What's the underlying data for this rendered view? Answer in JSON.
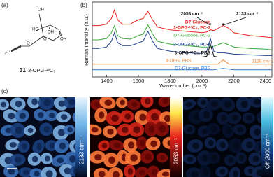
{
  "panel_labels": [
    "(a)",
    "(b)",
    "(c)"
  ],
  "structure": {
    "atom_labels": [
      "OH",
      "O",
      "OH",
      "OH",
      "HO",
      "O"
    ],
    "compound_number": "31",
    "compound_name": "3-OPG-¹³C₃"
  },
  "chart_data": {
    "type": "line",
    "x_label": "Wavenumber (cm⁻¹)",
    "y_label": "Raman Intensity (a.u.)",
    "x": [
      1310,
      1350,
      1400,
      1430,
      1450,
      1470,
      1500,
      1550,
      1580,
      1600,
      1630,
      1660,
      1690,
      1720,
      1800,
      1900,
      2000,
      2030,
      2053,
      2075,
      2100,
      2133,
      2170,
      2200,
      2300,
      2400,
      2440
    ],
    "series": [
      {
        "name": "D7-Glucose",
        "name_line2": "3-OPG-¹³C₃, PC-3",
        "color": "#e8231c",
        "values": [
          72,
          72,
          74,
          82,
          94,
          80,
          74,
          74,
          78,
          80,
          82,
          92,
          80,
          70,
          66,
          64,
          62,
          63,
          66,
          65,
          68,
          72,
          68,
          62,
          58,
          56,
          55
        ]
      },
      {
        "name": "D7-Glucose, PC-3",
        "color": "#3aaa35",
        "values": [
          52,
          52,
          54,
          62,
          72,
          58,
          54,
          53,
          56,
          58,
          60,
          73,
          60,
          50,
          46,
          44,
          42,
          42,
          42,
          43,
          45,
          48,
          45,
          42,
          40,
          39,
          38
        ]
      },
      {
        "name": "3-OPG-¹³C₃, PC-3",
        "color": "#1f3f8f",
        "values": [
          40,
          40,
          42,
          50,
          62,
          48,
          44,
          44,
          46,
          48,
          50,
          64,
          50,
          40,
          36,
          34,
          33,
          36,
          54,
          36,
          34,
          34,
          33,
          32,
          31,
          30,
          30
        ]
      },
      {
        "name": "3-OPG-¹³C₃, PBS",
        "color": "#111111",
        "values": [
          28,
          28,
          28,
          28,
          28,
          28,
          28,
          28,
          28,
          28,
          28,
          28,
          28,
          28,
          28,
          28,
          28,
          29,
          46,
          29,
          28,
          28,
          28,
          28,
          28,
          28,
          28
        ]
      },
      {
        "name": "3-OPG, PBS",
        "color": "#f08a3c",
        "values": [
          18,
          18,
          18,
          18,
          18,
          18,
          18,
          18,
          18,
          18,
          18,
          18,
          18,
          18,
          18,
          18,
          18,
          18,
          18,
          18,
          18,
          24,
          18,
          18,
          18,
          18,
          18
        ]
      },
      {
        "name": "D7-Glucose, PBS",
        "color": "#2a7bd4",
        "values": [
          10,
          10,
          10,
          10,
          10,
          10,
          10,
          10,
          10,
          10,
          10,
          10,
          10,
          10,
          10,
          10,
          10,
          10,
          10,
          10,
          11,
          12,
          11,
          10,
          10,
          10,
          10
        ]
      }
    ],
    "xlim": [
      1310,
      2440
    ],
    "xticks": [
      1400,
      1600,
      1800,
      2000,
      2200,
      2400
    ],
    "ylim": [
      0,
      105
    ],
    "annotations": [
      {
        "text": "2053 cm⁻¹",
        "x": 2053,
        "color": "#111111"
      },
      {
        "text": "2133 cm⁻¹",
        "x": 2133,
        "color": "#111111"
      },
      {
        "text": "2129 cm⁻¹",
        "x": 2129,
        "color": "#f08a3c"
      }
    ]
  },
  "images": [
    {
      "colorbar_label": "2133 cm⁻¹"
    },
    {
      "colorbar_label": "2053 cm⁻¹"
    },
    {
      "colorbar_label": "Off 2000 cm⁻¹"
    }
  ]
}
